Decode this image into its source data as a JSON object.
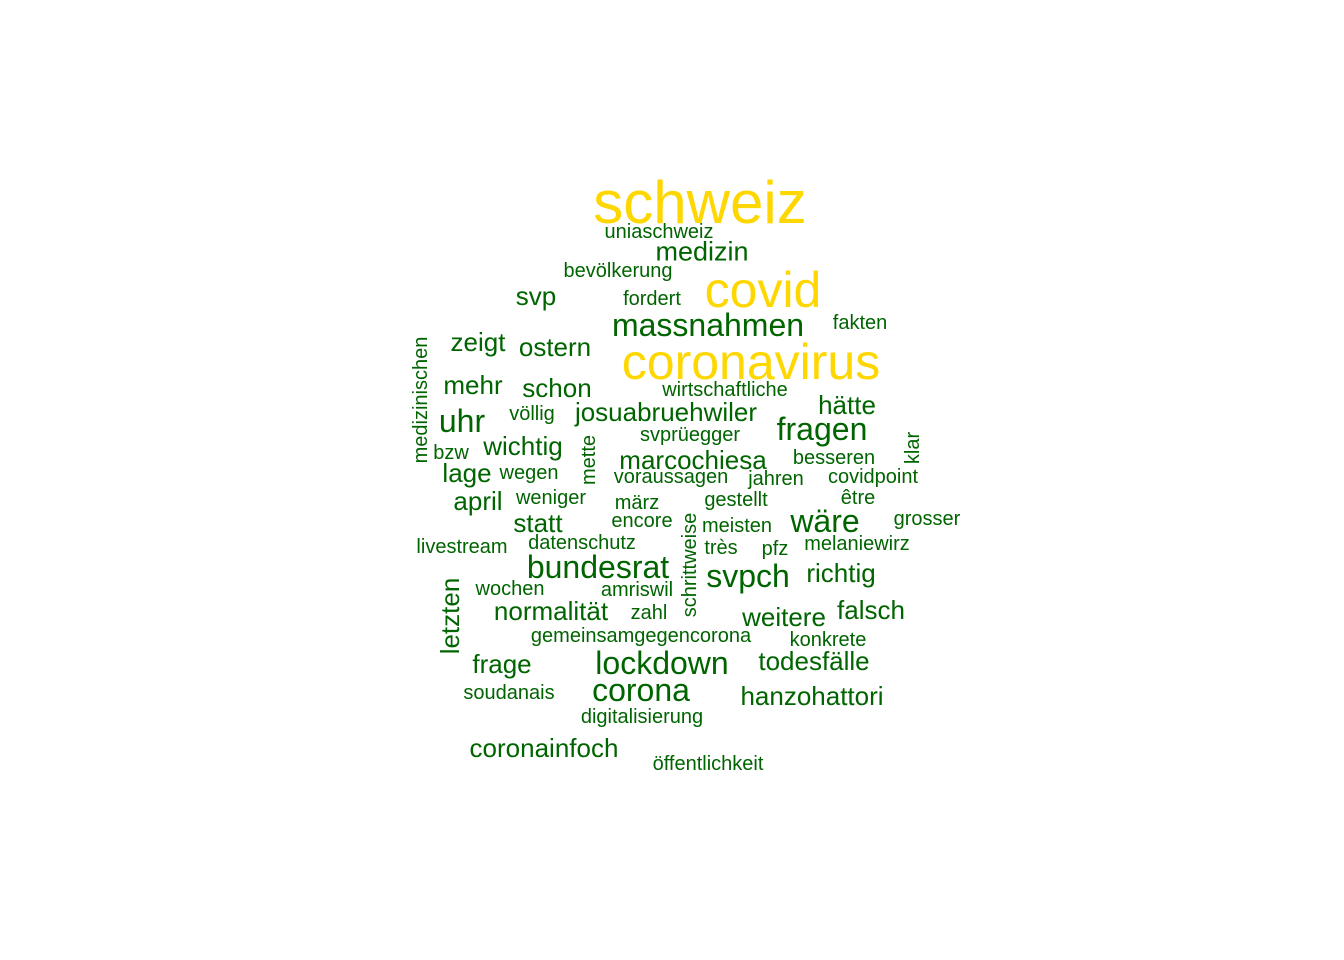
{
  "colors": {
    "highlight": "#FFD700",
    "normal": "#006400",
    "background": "#FFFFFF"
  },
  "words": [
    {
      "text": "schweiz",
      "color": "highlight"
    },
    {
      "text": "uniaschweiz",
      "color": "normal"
    },
    {
      "text": "medizin",
      "color": "normal"
    },
    {
      "text": "bevölkerung",
      "color": "normal"
    },
    {
      "text": "covid",
      "color": "highlight"
    },
    {
      "text": "svp",
      "color": "normal"
    },
    {
      "text": "fordert",
      "color": "normal"
    },
    {
      "text": "massnahmen",
      "color": "normal"
    },
    {
      "text": "fakten",
      "color": "normal"
    },
    {
      "text": "zeigt",
      "color": "normal"
    },
    {
      "text": "ostern",
      "color": "normal"
    },
    {
      "text": "coronavirus",
      "color": "highlight"
    },
    {
      "text": "medizinischen",
      "color": "normal",
      "vertical": true
    },
    {
      "text": "mehr",
      "color": "normal"
    },
    {
      "text": "schon",
      "color": "normal"
    },
    {
      "text": "wirtschaftliche",
      "color": "normal"
    },
    {
      "text": "uhr",
      "color": "normal"
    },
    {
      "text": "völlig",
      "color": "normal"
    },
    {
      "text": "josuabruehwiler",
      "color": "normal"
    },
    {
      "text": "hätte",
      "color": "normal"
    },
    {
      "text": "fragen",
      "color": "normal"
    },
    {
      "text": "wichtig",
      "color": "normal"
    },
    {
      "text": "svprüegger",
      "color": "normal"
    },
    {
      "text": "mette",
      "color": "normal",
      "vertical": true
    },
    {
      "text": "klar",
      "color": "normal",
      "vertical": true
    },
    {
      "text": "bzw",
      "color": "normal"
    },
    {
      "text": "marcochiesa",
      "color": "normal"
    },
    {
      "text": "besseren",
      "color": "normal"
    },
    {
      "text": "lage",
      "color": "normal"
    },
    {
      "text": "wegen",
      "color": "normal"
    },
    {
      "text": "voraussagen",
      "color": "normal"
    },
    {
      "text": "jahren",
      "color": "normal"
    },
    {
      "text": "covidpoint",
      "color": "normal"
    },
    {
      "text": "april",
      "color": "normal"
    },
    {
      "text": "weniger",
      "color": "normal"
    },
    {
      "text": "märz",
      "color": "normal"
    },
    {
      "text": "gestellt",
      "color": "normal"
    },
    {
      "text": "être",
      "color": "normal"
    },
    {
      "text": "statt",
      "color": "normal"
    },
    {
      "text": "encore",
      "color": "normal"
    },
    {
      "text": "meisten",
      "color": "normal"
    },
    {
      "text": "wäre",
      "color": "normal"
    },
    {
      "text": "grosser",
      "color": "normal"
    },
    {
      "text": "schrittweise",
      "color": "normal",
      "vertical": true
    },
    {
      "text": "livestream",
      "color": "normal"
    },
    {
      "text": "datenschutz",
      "color": "normal"
    },
    {
      "text": "très",
      "color": "normal"
    },
    {
      "text": "pfz",
      "color": "normal"
    },
    {
      "text": "melaniewirz",
      "color": "normal"
    },
    {
      "text": "bundesrat",
      "color": "normal"
    },
    {
      "text": "svpch",
      "color": "normal"
    },
    {
      "text": "richtig",
      "color": "normal"
    },
    {
      "text": "letzten",
      "color": "normal",
      "vertical": true
    },
    {
      "text": "wochen",
      "color": "normal"
    },
    {
      "text": "amriswil",
      "color": "normal"
    },
    {
      "text": "normalität",
      "color": "normal"
    },
    {
      "text": "zahl",
      "color": "normal"
    },
    {
      "text": "weitere",
      "color": "normal"
    },
    {
      "text": "falsch",
      "color": "normal"
    },
    {
      "text": "gemeinsamgegencorona",
      "color": "normal"
    },
    {
      "text": "konkrete",
      "color": "normal"
    },
    {
      "text": "frage",
      "color": "normal"
    },
    {
      "text": "lockdown",
      "color": "normal"
    },
    {
      "text": "todesfälle",
      "color": "normal"
    },
    {
      "text": "soudanais",
      "color": "normal"
    },
    {
      "text": "corona",
      "color": "normal"
    },
    {
      "text": "hanzohattori",
      "color": "normal"
    },
    {
      "text": "digitalisierung",
      "color": "normal"
    },
    {
      "text": "coronainfoch",
      "color": "normal"
    },
    {
      "text": "öffentlichkeit",
      "color": "normal"
    }
  ]
}
